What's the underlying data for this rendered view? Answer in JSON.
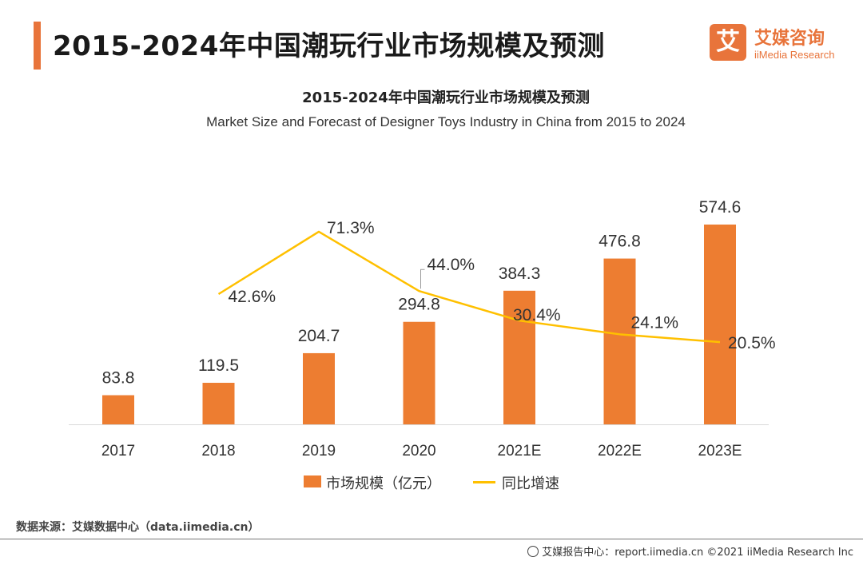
{
  "header": {
    "title": "2015-2024年中国潮玩行业市场规模及预测",
    "logo_cn": "艾媒咨询",
    "logo_en": "iiMedia Research",
    "logo_mark": "艾"
  },
  "colors": {
    "accent": "#e8743b",
    "bar": "#ed7d31",
    "line": "#ffc000"
  },
  "chart_data": {
    "type": "bar",
    "title": "2015-2024年中国潮玩行业市场规模及预测",
    "subtitle": "Market Size and Forecast of Designer Toys Industry in China from 2015 to 2024",
    "categories": [
      "2017",
      "2018",
      "2019",
      "2020",
      "2021E",
      "2022E",
      "2023E"
    ],
    "series": [
      {
        "name": "市场规模（亿元）",
        "type": "bar",
        "values": [
          83.8,
          119.5,
          204.7,
          294.8,
          384.3,
          476.8,
          574.6
        ],
        "labels": [
          "83.8",
          "119.5",
          "204.7",
          "294.8",
          "384.3",
          "476.8",
          "574.6"
        ]
      },
      {
        "name": "同比增速",
        "type": "line",
        "values": [
          null,
          42.6,
          71.3,
          44.0,
          30.4,
          24.1,
          20.5
        ],
        "labels": [
          "",
          "42.6%",
          "71.3%",
          "44.0%",
          "30.4%",
          "24.1%",
          "20.5%"
        ]
      }
    ],
    "legend_position": "bottom",
    "grid": false
  },
  "footer": {
    "source": "数据来源：艾媒数据中心（data.iimedia.cn）",
    "report": "艾媒报告中心：report.iimedia.cn  ©2021  iiMedia Research  Inc"
  }
}
